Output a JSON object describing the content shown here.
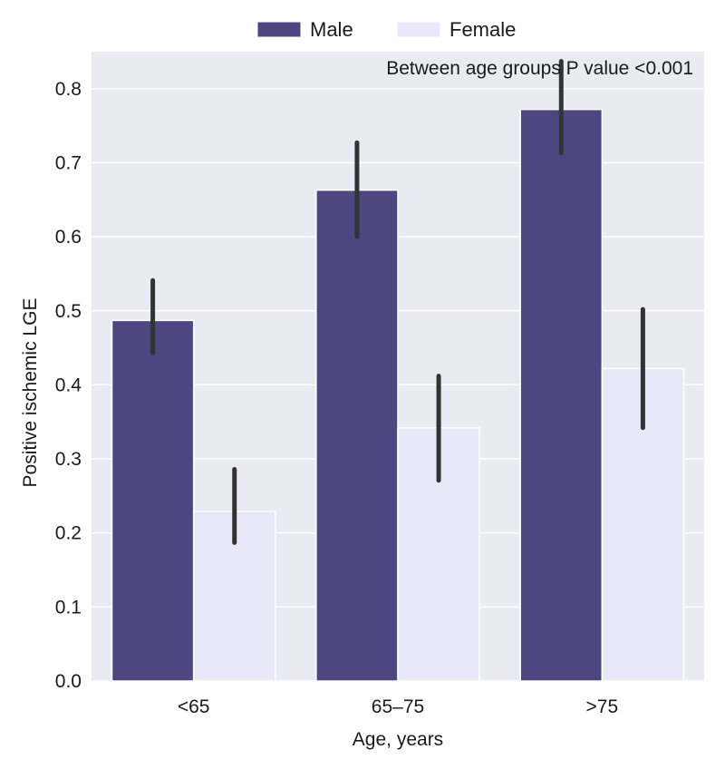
{
  "chart_data": {
    "type": "bar",
    "title": "",
    "xlabel": "Age, years",
    "ylabel": "Positive ischemic LGE",
    "categories": [
      "<65",
      "65–75",
      ">75"
    ],
    "ylim": [
      0,
      0.85
    ],
    "yticks": [
      "0.0",
      "0.1",
      "0.2",
      "0.3",
      "0.4",
      "0.5",
      "0.6",
      "0.7",
      "0.8"
    ],
    "grid": true,
    "legend_position": "top-center",
    "annotation": "Between age groups P value <0.001",
    "series": [
      {
        "name": "Male",
        "color": "#4e4680",
        "values": [
          0.487,
          0.663,
          0.772
        ],
        "ci_low": [
          0.443,
          0.6,
          0.713
        ],
        "ci_high": [
          0.541,
          0.727,
          0.837
        ]
      },
      {
        "name": "Female",
        "color": "#e8e8f8",
        "values": [
          0.229,
          0.342,
          0.422
        ],
        "ci_low": [
          0.187,
          0.271,
          0.342
        ],
        "ci_high": [
          0.286,
          0.412,
          0.502
        ]
      }
    ]
  },
  "style": {
    "plot_background": "#eaeaf2",
    "grid_color": "#ffffff",
    "errorbar_color": "#333333"
  }
}
